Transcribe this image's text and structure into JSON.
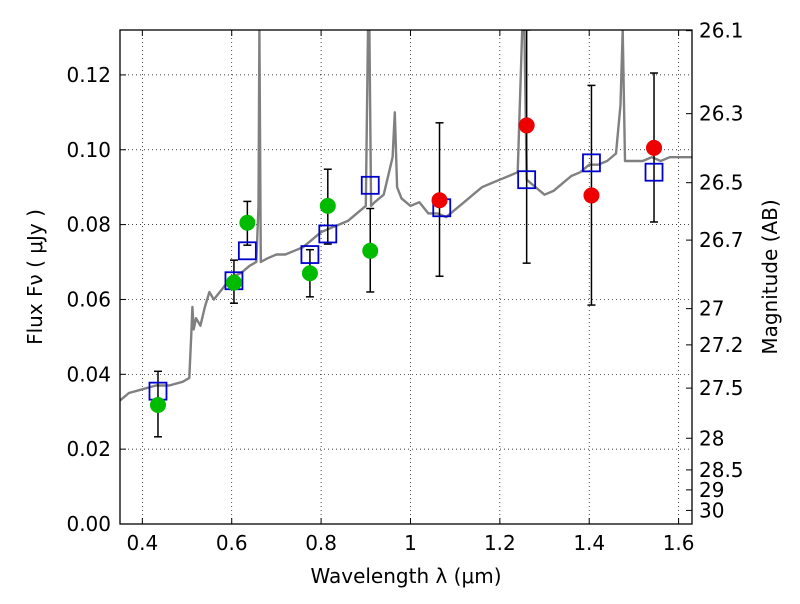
{
  "chart_data": {
    "type": "scatter",
    "xlabel": "Wavelength  λ (μm)",
    "ylabel": "Flux  Fν  ( μJy )",
    "ylabel_right": "Magnitude (AB)",
    "xlim": [
      0.35,
      1.63
    ],
    "ylim": [
      0.0,
      0.132
    ],
    "grid": true,
    "x_ticks": [
      0.4,
      0.6,
      0.8,
      1.0,
      1.2,
      1.4,
      1.6
    ],
    "x_tick_labels": [
      "0.4",
      "0.6",
      "0.8",
      "1",
      "1.2",
      "1.4",
      "1.6"
    ],
    "y_ticks": [
      0.0,
      0.02,
      0.04,
      0.06,
      0.08,
      0.1,
      0.12
    ],
    "y_tick_labels": [
      "0.00",
      "0.02",
      "0.04",
      "0.06",
      "0.08",
      "0.10",
      "0.12"
    ],
    "right_axis_ticks": [
      {
        "value": 26.1,
        "label": "26.1"
      },
      {
        "value": 26.3,
        "label": "26.3"
      },
      {
        "value": 26.5,
        "label": "26.5"
      },
      {
        "value": 26.7,
        "label": "26.7"
      },
      {
        "value": 27.0,
        "label": "27"
      },
      {
        "value": 27.2,
        "label": "27.2"
      },
      {
        "value": 27.5,
        "label": "27.5"
      },
      {
        "value": 28.0,
        "label": "28"
      },
      {
        "value": 28.5,
        "label": "28.5"
      },
      {
        "value": 29.0,
        "label": "29"
      },
      {
        "value": 30.0,
        "label": "30"
      }
    ],
    "series": [
      {
        "kind": "model_spectrum",
        "color": "#808080",
        "x": [
          0.35,
          0.37,
          0.4,
          0.43,
          0.46,
          0.49,
          0.505,
          0.51,
          0.512,
          0.515,
          0.52,
          0.53,
          0.54,
          0.55,
          0.56,
          0.58,
          0.6,
          0.62,
          0.64,
          0.655,
          0.66,
          0.662,
          0.665,
          0.68,
          0.7,
          0.72,
          0.74,
          0.76,
          0.78,
          0.8,
          0.82,
          0.84,
          0.86,
          0.88,
          0.9,
          0.905,
          0.908,
          0.912,
          0.92,
          0.94,
          0.96,
          0.965,
          0.97,
          0.98,
          1.0,
          1.02,
          1.04,
          1.06,
          1.08,
          1.1,
          1.12,
          1.14,
          1.16,
          1.18,
          1.2,
          1.22,
          1.24,
          1.25,
          1.255,
          1.26,
          1.27,
          1.3,
          1.32,
          1.34,
          1.36,
          1.38,
          1.4,
          1.42,
          1.44,
          1.46,
          1.47,
          1.475,
          1.48,
          1.5,
          1.52,
          1.54,
          1.56,
          1.58,
          1.6,
          1.63
        ],
        "y": [
          0.033,
          0.035,
          0.036,
          0.037,
          0.037,
          0.038,
          0.039,
          0.052,
          0.058,
          0.052,
          0.055,
          0.053,
          0.058,
          0.062,
          0.06,
          0.063,
          0.066,
          0.067,
          0.069,
          0.07,
          0.085,
          0.132,
          0.07,
          0.071,
          0.072,
          0.072,
          0.073,
          0.074,
          0.076,
          0.078,
          0.079,
          0.08,
          0.081,
          0.083,
          0.085,
          0.132,
          0.132,
          0.085,
          0.086,
          0.088,
          0.098,
          0.11,
          0.09,
          0.087,
          0.085,
          0.086,
          0.083,
          0.083,
          0.082,
          0.084,
          0.086,
          0.088,
          0.09,
          0.091,
          0.092,
          0.093,
          0.094,
          0.132,
          0.132,
          0.092,
          0.091,
          0.088,
          0.089,
          0.091,
          0.093,
          0.094,
          0.096,
          0.096,
          0.097,
          0.099,
          0.112,
          0.132,
          0.097,
          0.097,
          0.097,
          0.098,
          0.097,
          0.098,
          0.098,
          0.098
        ]
      },
      {
        "kind": "model_points",
        "marker": "open_square",
        "color": "#0000cc",
        "x": [
          0.435,
          0.605,
          0.635,
          0.775,
          0.815,
          0.91,
          1.07,
          1.26,
          1.405,
          1.545
        ],
        "y": [
          0.0355,
          0.065,
          0.073,
          0.072,
          0.0775,
          0.0905,
          0.0845,
          0.092,
          0.0965,
          0.094
        ]
      },
      {
        "kind": "observed_optical",
        "marker": "filled_circle",
        "color": "#00bb00",
        "x": [
          0.435,
          0.605,
          0.635,
          0.775,
          0.815,
          0.91
        ],
        "y": [
          0.0318,
          0.0645,
          0.0805,
          0.067,
          0.085,
          0.073
        ],
        "err_low": [
          0.0233,
          0.059,
          0.0745,
          0.0607,
          0.0748,
          0.062
        ],
        "err_high": [
          0.0408,
          0.0705,
          0.0862,
          0.0733,
          0.0948,
          0.0843
        ]
      },
      {
        "kind": "observed_nir",
        "marker": "filled_circle",
        "color": "#ee0000",
        "x": [
          1.065,
          1.26,
          1.405,
          1.545
        ],
        "y": [
          0.0865,
          0.1065,
          0.0878,
          0.1005
        ],
        "err_low": [
          0.0662,
          0.0697,
          0.0585,
          0.0807
        ],
        "err_high": [
          0.1072,
          0.132,
          0.1172,
          0.1205
        ]
      }
    ]
  }
}
